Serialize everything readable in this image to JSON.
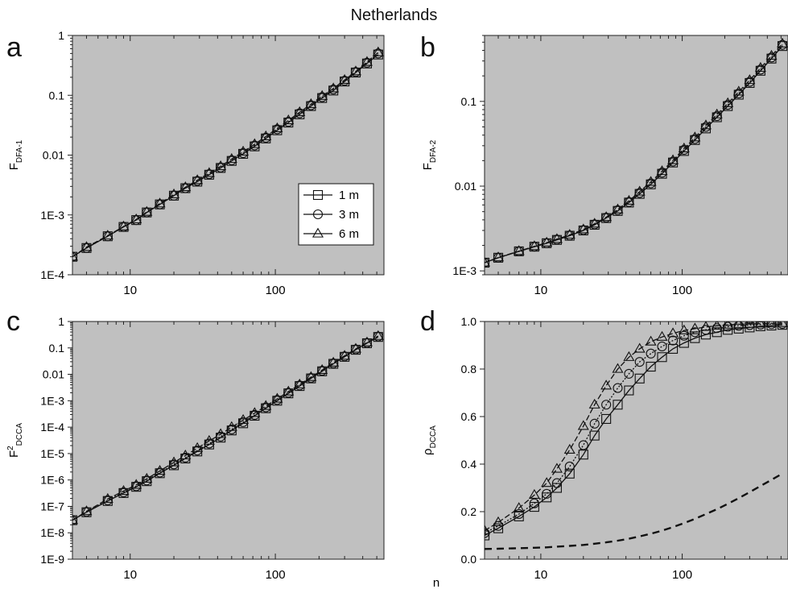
{
  "figure": {
    "title": "Netherlands",
    "colors": {
      "plot_background": "#c0c0c0",
      "line": "#111111",
      "marker_edge": "#111111"
    }
  },
  "chart_data": [
    {
      "panel": "a",
      "type": "line",
      "ylabel": "F",
      "ylabel_sub": "DFA-1",
      "xlabel": "",
      "xscale": "log",
      "yscale": "log",
      "xlim": [
        4,
        560
      ],
      "ylim": [
        0.0001,
        1
      ],
      "xticks": [
        10,
        100
      ],
      "xtick_labels": [
        "10",
        "100"
      ],
      "yticks": [
        0.0001,
        0.001,
        0.01,
        0.1,
        1
      ],
      "ytick_labels": [
        "1E-4",
        "1E-3",
        "0.01",
        "0.1",
        "1"
      ],
      "legend": {
        "position": "lower-right",
        "entries": [
          "1 m",
          "3 m",
          "6 m"
        ],
        "markers": [
          "square",
          "circle",
          "triangle"
        ]
      },
      "x": [
        4,
        5,
        7,
        9,
        11,
        13,
        16,
        20,
        24,
        29,
        35,
        42,
        50,
        60,
        72,
        86,
        103,
        123,
        147,
        176,
        210,
        251,
        300,
        358,
        428,
        511
      ],
      "series": [
        {
          "name": "1 m",
          "marker": "square",
          "values": [
            0.0002,
            0.00028,
            0.00044,
            0.00063,
            0.00082,
            0.0011,
            0.0015,
            0.0021,
            0.0028,
            0.0036,
            0.0047,
            0.0061,
            0.008,
            0.0105,
            0.014,
            0.019,
            0.026,
            0.035,
            0.048,
            0.066,
            0.09,
            0.12,
            0.17,
            0.24,
            0.34,
            0.48
          ]
        },
        {
          "name": "3 m",
          "marker": "circle",
          "values": [
            0.0002,
            0.00028,
            0.00044,
            0.00063,
            0.00082,
            0.0011,
            0.0015,
            0.0021,
            0.0028,
            0.0037,
            0.0048,
            0.0062,
            0.0082,
            0.0108,
            0.0145,
            0.0195,
            0.027,
            0.036,
            0.05,
            0.068,
            0.093,
            0.125,
            0.175,
            0.245,
            0.35,
            0.5
          ]
        },
        {
          "name": "6 m",
          "marker": "triangle",
          "values": [
            0.0002,
            0.00029,
            0.00045,
            0.00064,
            0.00084,
            0.00112,
            0.00155,
            0.0022,
            0.0029,
            0.0038,
            0.005,
            0.0065,
            0.0086,
            0.0114,
            0.0152,
            0.0205,
            0.028,
            0.038,
            0.052,
            0.071,
            0.097,
            0.13,
            0.18,
            0.25,
            0.36,
            0.52
          ]
        }
      ]
    },
    {
      "panel": "b",
      "type": "line",
      "ylabel": "F",
      "ylabel_sub": "DFA-2",
      "xlabel": "",
      "xscale": "log",
      "yscale": "log",
      "xlim": [
        4,
        560
      ],
      "ylim": [
        0.0009,
        0.6
      ],
      "xticks": [
        10,
        100
      ],
      "xtick_labels": [
        "10",
        "100"
      ],
      "yticks": [
        0.001,
        0.01,
        0.1
      ],
      "ytick_labels": [
        "1E-3",
        "0.01",
        "0.1"
      ],
      "x": [
        4,
        5,
        7,
        9,
        11,
        13,
        16,
        20,
        24,
        29,
        35,
        42,
        50,
        60,
        72,
        86,
        103,
        123,
        147,
        176,
        210,
        251,
        300,
        358,
        428,
        511
      ],
      "series": [
        {
          "name": "1 m",
          "marker": "square",
          "values": [
            0.00125,
            0.00143,
            0.0017,
            0.00193,
            0.00212,
            0.00232,
            0.0026,
            0.003,
            0.0035,
            0.0042,
            0.0051,
            0.0064,
            0.0081,
            0.0105,
            0.014,
            0.019,
            0.026,
            0.035,
            0.048,
            0.065,
            0.088,
            0.12,
            0.165,
            0.23,
            0.32,
            0.45
          ]
        },
        {
          "name": "3 m",
          "marker": "circle",
          "values": [
            0.00125,
            0.00143,
            0.0017,
            0.00193,
            0.00212,
            0.00234,
            0.00262,
            0.00303,
            0.00354,
            0.00425,
            0.0052,
            0.0065,
            0.0083,
            0.0108,
            0.0144,
            0.0195,
            0.0268,
            0.036,
            0.05,
            0.067,
            0.091,
            0.124,
            0.17,
            0.237,
            0.33,
            0.465
          ]
        },
        {
          "name": "6 m",
          "marker": "triangle",
          "values": [
            0.00125,
            0.00144,
            0.00171,
            0.00195,
            0.00215,
            0.00237,
            0.00266,
            0.00308,
            0.0036,
            0.0043,
            0.0053,
            0.0067,
            0.0086,
            0.0112,
            0.015,
            0.0202,
            0.0278,
            0.0375,
            0.052,
            0.07,
            0.095,
            0.13,
            0.178,
            0.248,
            0.345,
            0.48
          ]
        }
      ]
    },
    {
      "panel": "c",
      "type": "line",
      "ylabel": "F",
      "ylabel_sup": "2",
      "ylabel_sub": "DCCA",
      "xlabel": "",
      "xscale": "log",
      "yscale": "log",
      "xlim": [
        4,
        560
      ],
      "ylim": [
        1e-09,
        1
      ],
      "xticks": [
        10,
        100
      ],
      "xtick_labels": [
        "10",
        "100"
      ],
      "yticks": [
        1e-09,
        1e-08,
        1e-07,
        1e-06,
        1e-05,
        0.0001,
        0.001,
        0.01,
        0.1,
        1
      ],
      "ytick_labels": [
        "1E-9",
        "1E-8",
        "1E-7",
        "1E-6",
        "1E-5",
        "1E-4",
        "1E-3",
        "0.01",
        "0.1",
        "1"
      ],
      "x": [
        4,
        5,
        7,
        9,
        11,
        13,
        16,
        20,
        24,
        29,
        35,
        42,
        50,
        60,
        72,
        86,
        103,
        123,
        147,
        176,
        210,
        251,
        300,
        358,
        428,
        511
      ],
      "series": [
        {
          "name": "1 m",
          "marker": "square",
          "values": [
            3e-08,
            6e-08,
            1.6e-07,
            3.2e-07,
            5.5e-07,
            9e-07,
            1.8e-06,
            3.6e-06,
            6.5e-06,
            1.2e-05,
            2.2e-05,
            4e-05,
            7.5e-05,
            0.00014,
            0.00027,
            0.00052,
            0.001,
            0.0019,
            0.0036,
            0.007,
            0.013,
            0.025,
            0.046,
            0.085,
            0.15,
            0.26
          ]
        },
        {
          "name": "3 m",
          "marker": "circle",
          "values": [
            3e-08,
            6.2e-08,
            1.7e-07,
            3.4e-07,
            5.8e-07,
            9.6e-07,
            1.9e-06,
            3.9e-06,
            7e-06,
            1.3e-05,
            2.4e-05,
            4.4e-05,
            8.2e-05,
            0.000155,
            0.00029,
            0.00056,
            0.00107,
            0.002,
            0.0038,
            0.0073,
            0.0136,
            0.026,
            0.048,
            0.088,
            0.155,
            0.27
          ]
        },
        {
          "name": "6 m",
          "marker": "triangle",
          "values": [
            3e-08,
            6.5e-08,
            1.9e-07,
            3.8e-07,
            6.5e-07,
            1.1e-06,
            2.2e-06,
            4.6e-06,
            8.4e-06,
            1.6e-05,
            3e-05,
            5.4e-05,
            0.0001,
            0.000185,
            0.00034,
            0.00063,
            0.00118,
            0.0022,
            0.0041,
            0.0078,
            0.0145,
            0.0275,
            0.05,
            0.092,
            0.16,
            0.28
          ]
        }
      ]
    },
    {
      "panel": "d",
      "type": "line",
      "ylabel": "ρ",
      "ylabel_sub": "DCCA",
      "xlabel": "n",
      "xscale": "log",
      "yscale": "linear",
      "xlim": [
        4,
        560
      ],
      "ylim": [
        0,
        1
      ],
      "xticks": [
        10,
        100
      ],
      "xtick_labels": [
        "10",
        "100"
      ],
      "yticks": [
        0,
        0.2,
        0.4,
        0.6,
        0.8,
        1.0
      ],
      "ytick_labels": [
        "0.0",
        "0.2",
        "0.4",
        "0.6",
        "0.8",
        "1.0"
      ],
      "x": [
        4,
        5,
        7,
        9,
        11,
        13,
        16,
        20,
        24,
        29,
        35,
        42,
        50,
        60,
        72,
        86,
        103,
        123,
        147,
        176,
        210,
        251,
        300,
        358,
        428,
        511
      ],
      "series": [
        {
          "name": "1 m",
          "marker": "square",
          "values": [
            0.1,
            0.13,
            0.18,
            0.22,
            0.26,
            0.3,
            0.36,
            0.44,
            0.52,
            0.59,
            0.65,
            0.71,
            0.76,
            0.81,
            0.85,
            0.885,
            0.91,
            0.93,
            0.945,
            0.955,
            0.965,
            0.97,
            0.975,
            0.98,
            0.983,
            0.986
          ]
        },
        {
          "name": "3 m",
          "marker": "circle",
          "values": [
            0.11,
            0.14,
            0.19,
            0.235,
            0.275,
            0.32,
            0.39,
            0.48,
            0.57,
            0.65,
            0.72,
            0.78,
            0.83,
            0.865,
            0.895,
            0.92,
            0.94,
            0.955,
            0.965,
            0.972,
            0.978,
            0.982,
            0.985,
            0.987,
            0.989,
            0.99
          ]
        },
        {
          "name": "6 m",
          "marker": "triangle",
          "values": [
            0.12,
            0.155,
            0.215,
            0.27,
            0.32,
            0.38,
            0.46,
            0.56,
            0.65,
            0.73,
            0.8,
            0.85,
            0.885,
            0.915,
            0.935,
            0.95,
            0.962,
            0.97,
            0.977,
            0.982,
            0.986,
            0.988,
            0.99,
            0.991,
            0.992,
            0.993
          ]
        },
        {
          "name": "",
          "marker": "none",
          "linestyle": "dashed",
          "values": [
            0.043,
            0.044,
            0.046,
            0.048,
            0.05,
            0.053,
            0.056,
            0.06,
            0.065,
            0.071,
            0.078,
            0.086,
            0.096,
            0.107,
            0.12,
            0.135,
            0.152,
            0.17,
            0.19,
            0.21,
            0.233,
            0.257,
            0.282,
            0.308,
            0.334,
            0.36
          ]
        }
      ]
    }
  ]
}
